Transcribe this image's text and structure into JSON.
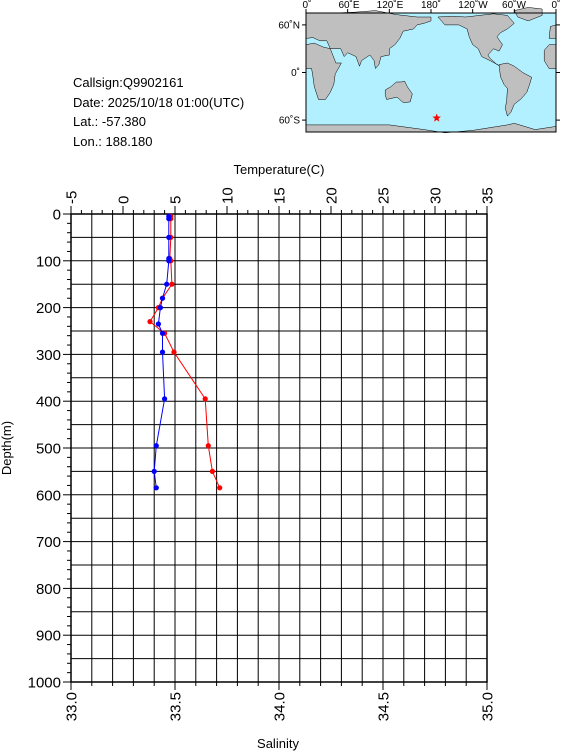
{
  "info": {
    "callsign": "Callsign:Q9902161",
    "date": "Date:  2025/10/18 01:00(UTC)",
    "lat": "Lat.:  -57.380",
    "lon": "Lon.:  188.180"
  },
  "map": {
    "lon_labels": [
      "0˚",
      "60˚E",
      "120˚E",
      "180˚",
      "120˚W",
      "60˚W",
      "0˚"
    ],
    "lat_labels": [
      "60˚N",
      "0˚",
      "60˚S"
    ],
    "station": {
      "lon": 188.18,
      "lat": -57.38
    },
    "colors": {
      "ocean": "#b3f0ff",
      "land": "#bfbfbf",
      "marker": "#ff0000"
    }
  },
  "chart_data": {
    "type": "line",
    "top_axis": {
      "label": "Temperature(C)",
      "range": [
        -5,
        35
      ],
      "ticks": [
        "-5",
        "0",
        "5",
        "10",
        "15",
        "20",
        "25",
        "30",
        "35"
      ]
    },
    "bottom_axis": {
      "label": "Salinity",
      "range": [
        33.0,
        35.0
      ],
      "ticks": [
        "33.0",
        "33.5",
        "34.0",
        "34.5",
        "35.0"
      ]
    },
    "y_axis": {
      "label": "Depth(m)",
      "range": [
        0,
        1000
      ],
      "inverted": true,
      "ticks": [
        "0",
        "100",
        "200",
        "300",
        "400",
        "500",
        "600",
        "700",
        "800",
        "900",
        "1000"
      ]
    },
    "grid": true,
    "series": [
      {
        "name": "temperature",
        "color": "#ff0000",
        "axis": "top",
        "depth": [
          5,
          10,
          50,
          95,
          100,
          150,
          180,
          200,
          230,
          255,
          295,
          395,
          495,
          550,
          585
        ],
        "values": [
          4.6,
          4.6,
          4.6,
          4.5,
          4.6,
          4.7,
          3.8,
          3.4,
          2.6,
          4.0,
          4.9,
          7.9,
          8.2,
          8.6,
          9.3
        ]
      },
      {
        "name": "salinity",
        "color": "#0000ff",
        "axis": "bottom",
        "depth": [
          5,
          10,
          50,
          95,
          100,
          150,
          180,
          200,
          235,
          255,
          295,
          395,
          495,
          550,
          585
        ],
        "values": [
          33.47,
          33.47,
          33.47,
          33.47,
          33.47,
          33.46,
          33.44,
          33.43,
          33.42,
          33.44,
          33.44,
          33.45,
          33.41,
          33.4,
          33.41
        ]
      }
    ]
  }
}
